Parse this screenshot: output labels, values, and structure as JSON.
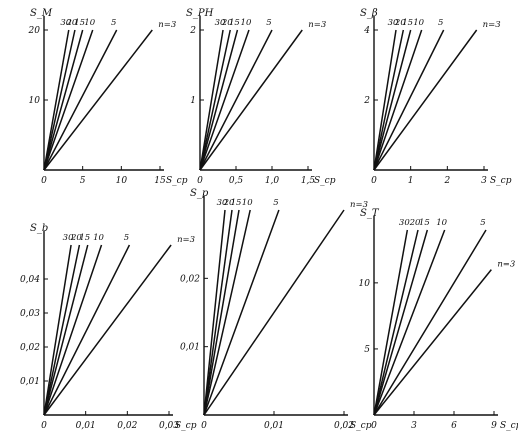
{
  "figure": {
    "description_free": true
  },
  "chart_data": [
    {
      "type": "line",
      "panel": "a",
      "ylabel": "S_M",
      "xlabel": "S_cp",
      "xlim": [
        0,
        15
      ],
      "ylim": [
        0,
        20
      ],
      "xticks": [
        0,
        5,
        10,
        15
      ],
      "xtick_labels": [
        "0",
        "5",
        "10",
        "15"
      ],
      "yticks": [
        10,
        20
      ],
      "ytick_labels": [
        "10",
        "20"
      ],
      "series": [
        {
          "name": "30",
          "x": [
            0,
            3.2
          ],
          "y": [
            0,
            20
          ]
        },
        {
          "name": "20",
          "x": [
            0,
            4.0
          ],
          "y": [
            0,
            20
          ]
        },
        {
          "name": "15",
          "x": [
            0,
            5.0
          ],
          "y": [
            0,
            20
          ]
        },
        {
          "name": "10",
          "x": [
            0,
            6.3
          ],
          "y": [
            0,
            20
          ]
        },
        {
          "name": "5",
          "x": [
            0,
            9.4
          ],
          "y": [
            0,
            20
          ]
        },
        {
          "name": "n=3",
          "x": [
            0,
            14.0
          ],
          "y": [
            0,
            20
          ]
        }
      ]
    },
    {
      "type": "line",
      "panel": "b",
      "ylabel": "S_PH",
      "xlabel": "S_cp",
      "xlim": [
        0,
        1.5
      ],
      "ylim": [
        0,
        2
      ],
      "xticks": [
        0,
        0.5,
        1.0,
        1.5
      ],
      "xtick_labels": [
        "0",
        "0,5",
        "1,0",
        "1,5"
      ],
      "yticks": [
        1,
        2
      ],
      "ytick_labels": [
        "1",
        "2"
      ],
      "series": [
        {
          "name": "30",
          "x": [
            0,
            0.32
          ],
          "y": [
            0,
            2
          ]
        },
        {
          "name": "20",
          "x": [
            0,
            0.42
          ],
          "y": [
            0,
            2
          ]
        },
        {
          "name": "15",
          "x": [
            0,
            0.52
          ],
          "y": [
            0,
            2
          ]
        },
        {
          "name": "10",
          "x": [
            0,
            0.68
          ],
          "y": [
            0,
            2
          ]
        },
        {
          "name": "5",
          "x": [
            0,
            1.0
          ],
          "y": [
            0,
            2
          ]
        },
        {
          "name": "n=3",
          "x": [
            0,
            1.42
          ],
          "y": [
            0,
            2
          ]
        }
      ]
    },
    {
      "type": "line",
      "panel": "c",
      "ylabel": "S_β",
      "xlabel": "S_cp",
      "xlim": [
        0,
        3
      ],
      "ylim": [
        0,
        4
      ],
      "xticks": [
        0,
        1,
        2,
        3
      ],
      "xtick_labels": [
        "0",
        "1",
        "2",
        "3"
      ],
      "yticks": [
        2,
        4
      ],
      "ytick_labels": [
        "2",
        "4"
      ],
      "series": [
        {
          "name": "30",
          "x": [
            0,
            0.6
          ],
          "y": [
            0,
            4
          ]
        },
        {
          "name": "20",
          "x": [
            0,
            0.8
          ],
          "y": [
            0,
            4
          ]
        },
        {
          "name": "15",
          "x": [
            0,
            1.0
          ],
          "y": [
            0,
            4
          ]
        },
        {
          "name": "10",
          "x": [
            0,
            1.3
          ],
          "y": [
            0,
            4
          ]
        },
        {
          "name": "5",
          "x": [
            0,
            1.9
          ],
          "y": [
            0,
            4
          ]
        },
        {
          "name": "n=3",
          "x": [
            0,
            2.8
          ],
          "y": [
            0,
            4
          ]
        }
      ]
    },
    {
      "type": "line",
      "panel": "d",
      "ylabel": "S_b",
      "xlabel": "S_cp",
      "xlim": [
        0,
        0.03
      ],
      "ylim": [
        0,
        0.05
      ],
      "xticks": [
        0,
        0.01,
        0.02,
        0.03
      ],
      "xtick_labels": [
        "0",
        "0,01",
        "0,02",
        "0,03"
      ],
      "yticks": [
        0.01,
        0.02,
        0.03,
        0.04
      ],
      "ytick_labels": [
        "0,01",
        "0,02",
        "0,03",
        "0,04"
      ],
      "series": [
        {
          "name": "30",
          "x": [
            0,
            0.0065
          ],
          "y": [
            0,
            0.05
          ]
        },
        {
          "name": "20",
          "x": [
            0,
            0.0085
          ],
          "y": [
            0,
            0.05
          ]
        },
        {
          "name": "15",
          "x": [
            0,
            0.0105
          ],
          "y": [
            0,
            0.05
          ]
        },
        {
          "name": "10",
          "x": [
            0,
            0.0138
          ],
          "y": [
            0,
            0.05
          ]
        },
        {
          "name": "5",
          "x": [
            0,
            0.0205
          ],
          "y": [
            0,
            0.05
          ]
        },
        {
          "name": "n=3",
          "x": [
            0,
            0.0305
          ],
          "y": [
            0,
            0.05
          ]
        }
      ]
    },
    {
      "type": "line",
      "panel": "e",
      "ylabel": "S_p",
      "xlabel": "S_cp",
      "xlim": [
        0,
        0.02
      ],
      "ylim": [
        0,
        0.03
      ],
      "xticks": [
        0,
        0.01,
        0.02
      ],
      "xtick_labels": [
        "0",
        "0,01",
        "0,02"
      ],
      "yticks": [
        0.01,
        0.02
      ],
      "ytick_labels": [
        "0,01",
        "0,02"
      ],
      "series": [
        {
          "name": "30",
          "x": [
            0,
            0.003
          ],
          "y": [
            0,
            0.03
          ]
        },
        {
          "name": "20",
          "x": [
            0,
            0.004
          ],
          "y": [
            0,
            0.03
          ]
        },
        {
          "name": "15",
          "x": [
            0,
            0.005
          ],
          "y": [
            0,
            0.03
          ]
        },
        {
          "name": "10",
          "x": [
            0,
            0.0066
          ],
          "y": [
            0,
            0.03
          ]
        },
        {
          "name": "5",
          "x": [
            0,
            0.0107
          ],
          "y": [
            0,
            0.03
          ]
        },
        {
          "name": "n=3",
          "x": [
            0,
            0.02
          ],
          "y": [
            0,
            0.03
          ]
        }
      ]
    },
    {
      "type": "line",
      "panel": "f",
      "ylabel": "S_T",
      "xlabel": "S_cp",
      "xlim": [
        0,
        9
      ],
      "ylim": [
        0,
        14
      ],
      "xticks": [
        0,
        3,
        6,
        9
      ],
      "xtick_labels": [
        "0",
        "3",
        "6",
        "9"
      ],
      "yticks": [
        5,
        10
      ],
      "ytick_labels": [
        "5",
        "10"
      ],
      "series": [
        {
          "name": "30",
          "x": [
            0,
            2.5
          ],
          "y": [
            0,
            14
          ]
        },
        {
          "name": "20",
          "x": [
            0,
            3.3
          ],
          "y": [
            0,
            14
          ]
        },
        {
          "name": "15",
          "x": [
            0,
            4.0
          ],
          "y": [
            0,
            14
          ]
        },
        {
          "name": "10",
          "x": [
            0,
            5.3
          ],
          "y": [
            0,
            14
          ]
        },
        {
          "name": "5",
          "x": [
            0,
            8.4
          ],
          "y": [
            0,
            14
          ]
        },
        {
          "name": "n=3",
          "x": [
            0,
            8.8
          ],
          "y": [
            0,
            11
          ]
        }
      ]
    }
  ]
}
